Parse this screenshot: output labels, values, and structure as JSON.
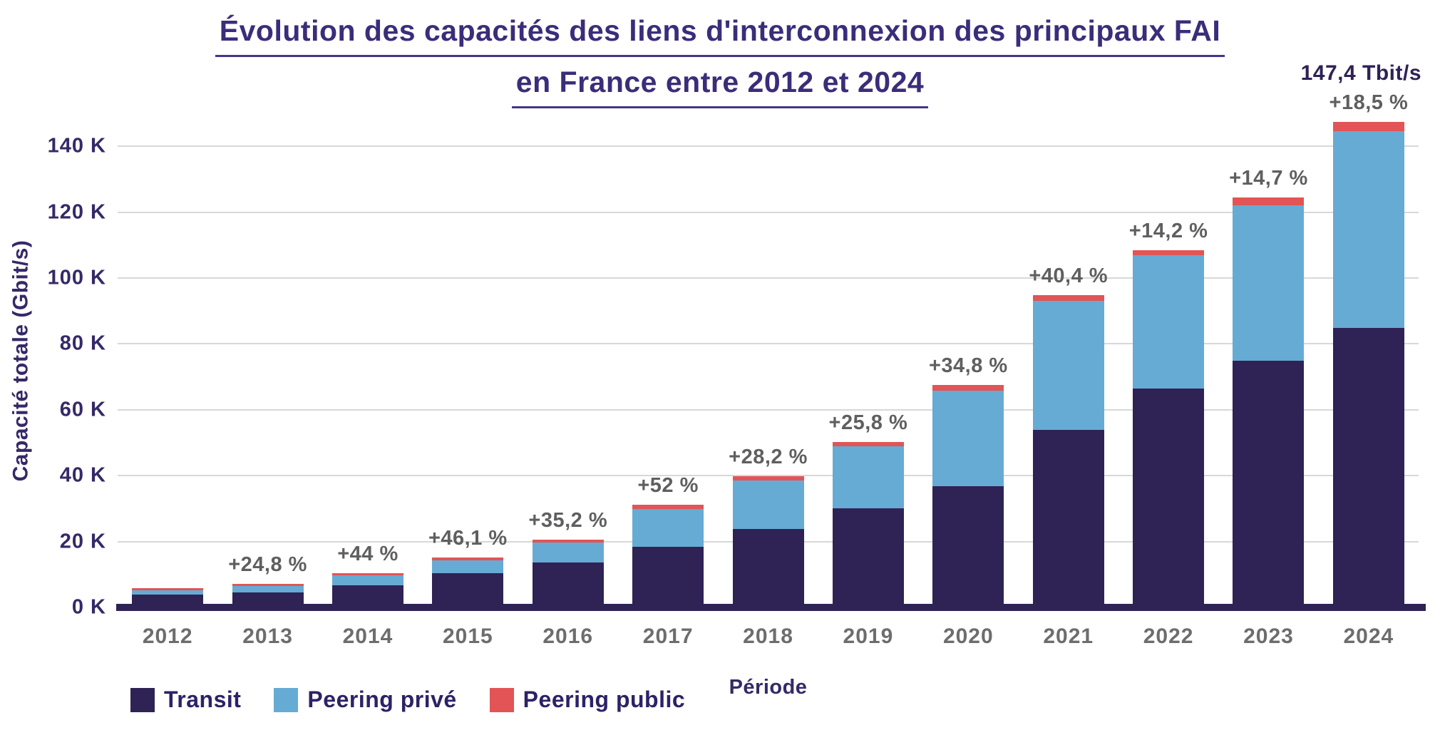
{
  "title": {
    "line1": "Évolution des capacités des liens d'interconnexion des principaux FAI",
    "line2": "en France entre 2012 et 2024"
  },
  "peak_label": "147,4 Tbit/s",
  "axes": {
    "x_title": "Période",
    "y_title": "Capacité totale (Gbit/s)"
  },
  "legend": [
    {
      "label": "Transit",
      "color": "#2F2255"
    },
    {
      "label": "Peering privé",
      "color": "#66ABD4"
    },
    {
      "label": "Peering public",
      "color": "#E25455"
    }
  ],
  "colors": {
    "transit": "#2F2255",
    "peering_prive": "#66ABD4",
    "peering_public": "#E25455",
    "title_purple": "#3B2D7A",
    "axis_purple": "#352968",
    "label_gray": "#5F5F5F",
    "year_gray": "#6D6D6D",
    "gridline": "#D8D8D8"
  },
  "chart_data": {
    "type": "bar",
    "stacked": true,
    "title": "Évolution des capacités des liens d'interconnexion des principaux FAI en France entre 2012 et 2024",
    "xlabel": "Période",
    "ylabel": "Capacité totale (Gbit/s)",
    "unit": "thousands of Gbit/s (K = 1000 Gbit/s = 1 Tbit/s)",
    "categories": [
      "2012",
      "2013",
      "2014",
      "2015",
      "2016",
      "2017",
      "2018",
      "2019",
      "2020",
      "2021",
      "2022",
      "2023",
      "2024"
    ],
    "series": [
      {
        "name": "Transit",
        "color": "#2F2255",
        "values": [
          3.8,
          4.6,
          6.8,
          10.3,
          13.6,
          18.5,
          23.9,
          30.1,
          36.9,
          54.0,
          66.5,
          74.8,
          84.9
        ]
      },
      {
        "name": "Peering privé",
        "color": "#66ABD4",
        "values": [
          1.5,
          2.0,
          3.0,
          4.1,
          6.1,
          11.4,
          14.6,
          18.8,
          28.9,
          39.0,
          40.4,
          47.3,
          59.7
        ]
      },
      {
        "name": "Peering public",
        "color": "#E25455",
        "values": [
          0.5,
          0.6,
          0.6,
          0.7,
          0.8,
          1.2,
          1.4,
          1.3,
          1.8,
          1.9,
          1.5,
          2.3,
          2.8
        ]
      }
    ],
    "totals": [
      5.8,
      7.2,
      10.4,
      15.1,
      20.5,
      31.1,
      39.9,
      50.2,
      67.6,
      94.9,
      108.4,
      124.4,
      147.4
    ],
    "growth_labels": [
      "",
      "+24,8 %",
      "+44 %",
      "+46,1 %",
      "+35,2 %",
      "+52 %",
      "+28,2 %",
      "+25,8 %",
      "+34,8 %",
      "+40,4 %",
      "+14,2 %",
      "+14,7 %",
      "+18,5 %"
    ],
    "peak_label": "147,4 Tbit/s",
    "y_ticks": {
      "values": [
        0,
        20,
        40,
        60,
        80,
        100,
        120,
        140
      ],
      "labels": [
        "0 K",
        "20 K",
        "40 K",
        "60 K",
        "80 K",
        "100 K",
        "120 K",
        "140 K"
      ]
    },
    "ylim": [
      0,
      150
    ],
    "grid": "horizontal",
    "legend_position": "bottom-left"
  }
}
